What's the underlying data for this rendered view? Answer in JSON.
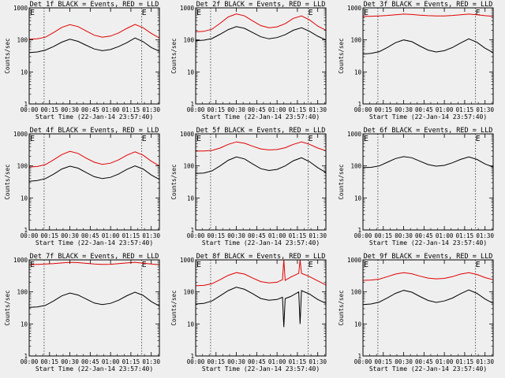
{
  "chart_data": [
    {
      "type": "line",
      "title": "Det 1f BLACK = Events, RED = LLD",
      "xlabel": "Start Time (22-Jan-14 23:57:40)",
      "ylabel": "Counts/sec",
      "yscale": "log",
      "ylim": [
        1,
        1000
      ],
      "yticks": [
        "1",
        "10",
        "100",
        "1000"
      ],
      "xticks": [
        "00:00",
        "00:15",
        "00:30",
        "00:45",
        "01:00",
        "01:15",
        "01:30"
      ],
      "xlim_min": [
        0,
        96
      ],
      "marker_lines_min": [
        11,
        83
      ],
      "marker_label_min": 83,
      "marker_label": "E",
      "series": [
        {
          "name": "BLACK = Events",
          "color": "#000000",
          "x_min": [
            0,
            6,
            12,
            18,
            24,
            30,
            36,
            42,
            48,
            54,
            60,
            66,
            72,
            78,
            84,
            90,
            96
          ],
          "y": [
            40,
            42,
            48,
            62,
            85,
            105,
            90,
            68,
            52,
            46,
            50,
            62,
            82,
            115,
            88,
            58,
            44
          ]
        },
        {
          "name": "RED = LLD",
          "color": "#e00000",
          "x_min": [
            0,
            6,
            12,
            18,
            24,
            30,
            36,
            42,
            48,
            54,
            60,
            66,
            72,
            78,
            84,
            90,
            96
          ],
          "y": [
            105,
            108,
            122,
            170,
            245,
            300,
            260,
            190,
            140,
            122,
            132,
            165,
            230,
            305,
            240,
            160,
            115
          ]
        }
      ]
    },
    {
      "type": "line",
      "title": "Det 2f BLACK = Events, RED = LLD",
      "xlabel": "Start Time (22-Jan-14 23:57:40)",
      "ylabel": "Counts/sec",
      "yscale": "log",
      "ylim": [
        1,
        1000
      ],
      "yticks": [
        "1",
        "10",
        "100",
        "1000"
      ],
      "xticks": [
        "00:00",
        "00:15",
        "00:30",
        "00:45",
        "01:00",
        "01:15",
        "01:30"
      ],
      "xlim_min": [
        0,
        96
      ],
      "marker_lines_min": [
        11,
        83
      ],
      "marker_label_min": 83,
      "marker_label": "E",
      "series": [
        {
          "name": "BLACK = Events",
          "color": "#000000",
          "x_min": [
            0,
            6,
            12,
            18,
            24,
            30,
            36,
            42,
            48,
            54,
            60,
            66,
            72,
            78,
            84,
            90,
            96
          ],
          "y": [
            95,
            98,
            110,
            150,
            210,
            260,
            230,
            170,
            125,
            108,
            118,
            145,
            200,
            240,
            185,
            130,
            100
          ]
        },
        {
          "name": "RED = LLD",
          "color": "#e00000",
          "x_min": [
            0,
            6,
            12,
            18,
            24,
            30,
            36,
            42,
            48,
            54,
            60,
            66,
            72,
            78,
            84,
            90,
            96
          ],
          "y": [
            180,
            185,
            215,
            330,
            520,
            650,
            560,
            390,
            280,
            240,
            255,
            320,
            470,
            560,
            420,
            270,
            200
          ]
        }
      ]
    },
    {
      "type": "line",
      "title": "Det 3f BLACK = Events, RED = LLD",
      "xlabel": "Start Time (22-Jan-14 23:57:40)",
      "ylabel": "Counts/sec",
      "yscale": "log",
      "ylim": [
        1,
        1000
      ],
      "yticks": [
        "1",
        "10",
        "100",
        "1000"
      ],
      "xticks": [
        "00:00",
        "00:15",
        "00:30",
        "00:45",
        "01:00",
        "01:15",
        "01:30"
      ],
      "xlim_min": [
        0,
        96
      ],
      "marker_lines_min": [
        11,
        83
      ],
      "marker_label_min": 83,
      "marker_label": "E",
      "series": [
        {
          "name": "BLACK = Events",
          "color": "#000000",
          "x_min": [
            0,
            6,
            12,
            18,
            24,
            30,
            36,
            42,
            48,
            54,
            60,
            66,
            72,
            78,
            84,
            90,
            96
          ],
          "y": [
            36,
            38,
            43,
            58,
            82,
            100,
            88,
            64,
            48,
            42,
            46,
            58,
            80,
            108,
            84,
            55,
            40
          ]
        },
        {
          "name": "RED = LLD",
          "color": "#e00000",
          "x_min": [
            0,
            6,
            12,
            18,
            24,
            30,
            36,
            42,
            48,
            54,
            60,
            66,
            72,
            78,
            84,
            90,
            96
          ],
          "y": [
            540,
            550,
            560,
            580,
            610,
            640,
            620,
            590,
            570,
            560,
            560,
            580,
            610,
            640,
            610,
            570,
            545
          ]
        }
      ]
    },
    {
      "type": "line",
      "title": "Det 4f BLACK = Events, RED = LLD",
      "xlabel": "Start Time (22-Jan-14 23:57:40)",
      "ylabel": "Counts/sec",
      "yscale": "log",
      "ylim": [
        1,
        1000
      ],
      "yticks": [
        "1",
        "10",
        "100",
        "1000"
      ],
      "xticks": [
        "00:00",
        "00:15",
        "00:30",
        "00:45",
        "01:00",
        "01:15",
        "01:30"
      ],
      "xlim_min": [
        0,
        96
      ],
      "marker_lines_min": [
        11,
        83
      ],
      "marker_label_min": 83,
      "marker_label": "E",
      "series": [
        {
          "name": "BLACK = Events",
          "color": "#000000",
          "x_min": [
            0,
            6,
            12,
            18,
            24,
            30,
            36,
            42,
            48,
            54,
            60,
            66,
            72,
            78,
            84,
            90,
            96
          ],
          "y": [
            33,
            35,
            40,
            55,
            80,
            98,
            85,
            62,
            46,
            40,
            44,
            56,
            78,
            100,
            80,
            52,
            38
          ]
        },
        {
          "name": "RED = LLD",
          "color": "#e00000",
          "x_min": [
            0,
            6,
            12,
            18,
            24,
            30,
            36,
            42,
            48,
            54,
            60,
            66,
            72,
            78,
            84,
            90,
            96
          ],
          "y": [
            92,
            96,
            110,
            155,
            225,
            285,
            245,
            175,
            130,
            112,
            122,
            155,
            215,
            275,
            215,
            140,
            100
          ]
        }
      ]
    },
    {
      "type": "line",
      "title": "Det 5f BLACK = Events, RED = LLD",
      "xlabel": "Start Time (22-Jan-14 23:57:40)",
      "ylabel": "Counts/sec",
      "yscale": "log",
      "ylim": [
        1,
        1000
      ],
      "yticks": [
        "1",
        "10",
        "100",
        "1000"
      ],
      "xticks": [
        "00:00",
        "00:15",
        "00:30",
        "00:45",
        "01:00",
        "01:15",
        "01:30"
      ],
      "xlim_min": [
        0,
        96
      ],
      "marker_lines_min": [
        11,
        83
      ],
      "marker_label_min": 83,
      "marker_label": "E",
      "series": [
        {
          "name": "BLACK = Events",
          "color": "#000000",
          "x_min": [
            0,
            6,
            12,
            18,
            24,
            30,
            36,
            42,
            48,
            54,
            60,
            66,
            72,
            78,
            84,
            90,
            96
          ],
          "y": [
            58,
            60,
            70,
            100,
            150,
            190,
            165,
            115,
            82,
            72,
            78,
            100,
            145,
            180,
            135,
            88,
            62
          ]
        },
        {
          "name": "RED = LLD",
          "color": "#e00000",
          "x_min": [
            0,
            6,
            12,
            18,
            24,
            30,
            36,
            42,
            48,
            54,
            60,
            66,
            72,
            78,
            84,
            90,
            96
          ],
          "y": [
            290,
            292,
            305,
            360,
            470,
            560,
            510,
            410,
            340,
            315,
            325,
            370,
            470,
            560,
            470,
            360,
            300
          ]
        }
      ]
    },
    {
      "type": "line",
      "title": "Det 6f BLACK = Events, RED = LLD",
      "xlabel": "Start Time (22-Jan-14 23:57:40)",
      "ylabel": "Counts/sec",
      "yscale": "log",
      "ylim": [
        1,
        1000
      ],
      "yticks": [
        "1",
        "10",
        "100",
        "1000"
      ],
      "xticks": [
        "00:00",
        "00:15",
        "00:30",
        "00:45",
        "01:00",
        "01:15",
        "01:30"
      ],
      "xlim_min": [
        0,
        96
      ],
      "marker_lines_min": [
        11,
        83
      ],
      "marker_label_min": 83,
      "marker_label": "E",
      "series": [
        {
          "name": "BLACK = Events",
          "color": "#000000",
          "x_min": [
            0,
            6,
            12,
            18,
            24,
            30,
            36,
            42,
            48,
            54,
            60,
            66,
            72,
            78,
            84,
            90,
            96
          ],
          "y": [
            88,
            90,
            100,
            130,
            170,
            195,
            180,
            140,
            110,
            98,
            104,
            125,
            160,
            190,
            160,
            115,
            92
          ]
        }
      ]
    },
    {
      "type": "line",
      "title": "Det 7f BLACK = Events, RED = LLD",
      "xlabel": "Start Time (22-Jan-14 23:57:40)",
      "ylabel": "Counts/sec",
      "yscale": "log",
      "ylim": [
        1,
        1000
      ],
      "yticks": [
        "1",
        "10",
        "100",
        "1000"
      ],
      "xticks": [
        "00:00",
        "00:15",
        "00:30",
        "00:45",
        "01:00",
        "01:15",
        "01:30"
      ],
      "xlim_min": [
        0,
        96
      ],
      "marker_lines_min": [
        11,
        83
      ],
      "marker_label_min": 83,
      "marker_label": "E",
      "series": [
        {
          "name": "BLACK = Events",
          "color": "#000000",
          "x_min": [
            0,
            6,
            12,
            18,
            24,
            30,
            36,
            42,
            48,
            54,
            60,
            66,
            72,
            78,
            84,
            90,
            96
          ],
          "y": [
            33,
            34,
            38,
            52,
            75,
            92,
            80,
            60,
            45,
            40,
            44,
            55,
            76,
            98,
            78,
            50,
            36
          ]
        },
        {
          "name": "RED = LLD",
          "color": "#e00000",
          "x_min": [
            0,
            6,
            12,
            18,
            24,
            30,
            36,
            42,
            48,
            54,
            60,
            66,
            72,
            78,
            84,
            90,
            96
          ],
          "y": [
            700,
            720,
            740,
            760,
            800,
            840,
            820,
            780,
            740,
            720,
            730,
            760,
            800,
            840,
            790,
            740,
            700
          ]
        }
      ]
    },
    {
      "type": "line",
      "title": "Det 8f BLACK = Events, RED = LLD",
      "xlabel": "Start Time (22-Jan-14 23:57:40)",
      "ylabel": "Counts/sec",
      "yscale": "log",
      "ylim": [
        1,
        1000
      ],
      "yticks": [
        "1",
        "10",
        "100",
        "1000"
      ],
      "xticks": [
        "00:00",
        "00:15",
        "00:30",
        "00:45",
        "01:00",
        "01:15",
        "01:30"
      ],
      "xlim_min": [
        0,
        96
      ],
      "marker_lines_min": [
        11,
        83
      ],
      "marker_label_min": 83,
      "marker_label": "E",
      "series": [
        {
          "name": "BLACK = Events",
          "color": "#000000",
          "x_min": [
            0,
            6,
            12,
            18,
            24,
            30,
            36,
            42,
            48,
            54,
            60,
            64,
            65,
            66,
            70,
            76,
            77,
            78,
            84,
            90,
            96
          ],
          "y": [
            42,
            44,
            52,
            75,
            110,
            140,
            120,
            88,
            62,
            55,
            58,
            68,
            8,
            62,
            72,
            100,
            10,
            110,
            85,
            58,
            44
          ]
        },
        {
          "name": "RED = LLD",
          "color": "#e00000",
          "x_min": [
            0,
            6,
            12,
            18,
            24,
            30,
            36,
            42,
            48,
            54,
            60,
            64,
            65,
            66,
            70,
            76,
            77,
            78,
            84,
            90,
            96
          ],
          "y": [
            155,
            160,
            180,
            240,
            330,
            400,
            360,
            270,
            210,
            190,
            200,
            240,
            1000,
            230,
            290,
            380,
            1000,
            380,
            300,
            220,
            165
          ]
        }
      ]
    },
    {
      "type": "line",
      "title": "Det 9f BLACK = Events, RED = LLD",
      "xlabel": "Start Time (22-Jan-14 23:57:40)",
      "ylabel": "Counts/sec",
      "yscale": "log",
      "ylim": [
        1,
        1000
      ],
      "yticks": [
        "1",
        "10",
        "100",
        "1000"
      ],
      "xticks": [
        "00:00",
        "00:15",
        "00:30",
        "00:45",
        "01:00",
        "01:15",
        "01:30"
      ],
      "xlim_min": [
        0,
        96
      ],
      "marker_lines_min": [
        11,
        83
      ],
      "marker_label_min": 83,
      "marker_label": "E",
      "series": [
        {
          "name": "BLACK = Events",
          "color": "#000000",
          "x_min": [
            0,
            6,
            12,
            18,
            24,
            30,
            36,
            42,
            48,
            54,
            60,
            66,
            72,
            78,
            84,
            90,
            96
          ],
          "y": [
            40,
            42,
            48,
            65,
            90,
            112,
            98,
            72,
            54,
            47,
            52,
            64,
            88,
            115,
            90,
            60,
            44
          ]
        },
        {
          "name": "RED = LLD",
          "color": "#e00000",
          "x_min": [
            0,
            6,
            12,
            18,
            24,
            30,
            36,
            42,
            48,
            54,
            60,
            66,
            72,
            78,
            84,
            90,
            96
          ],
          "y": [
            230,
            235,
            250,
            300,
            360,
            400,
            370,
            310,
            270,
            255,
            265,
            300,
            360,
            400,
            350,
            280,
            240
          ]
        }
      ]
    }
  ]
}
